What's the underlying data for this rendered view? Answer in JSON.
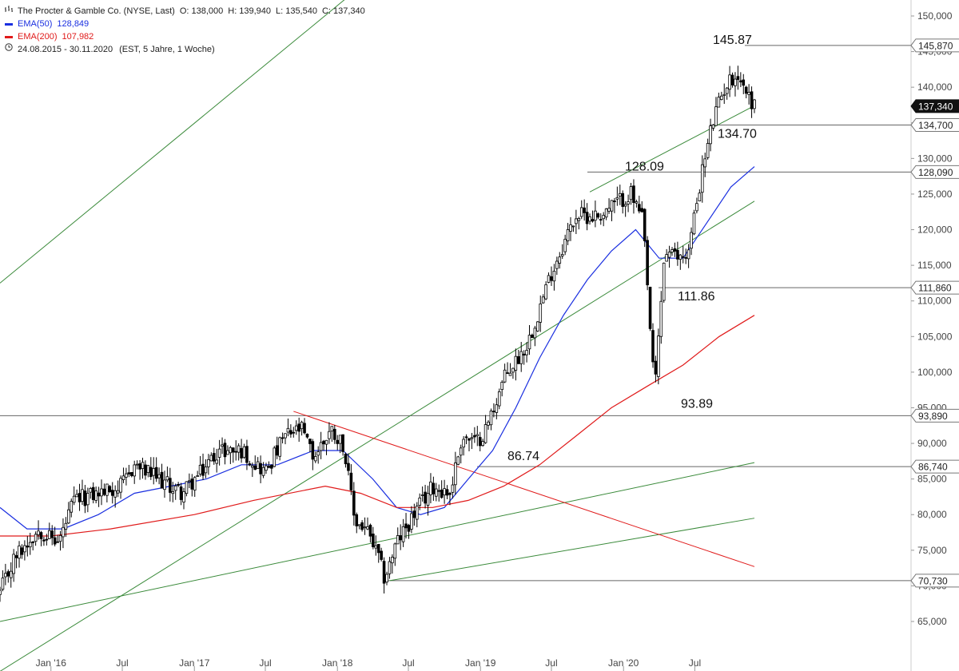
{
  "legend": {
    "title": "The Procter & Gamble Co. (NYSE, Last)",
    "ohlc": {
      "o_label": "O:",
      "o": "138,000",
      "h_label": "H:",
      "h": "139,940",
      "l_label": "L:",
      "l": "135,540",
      "c_label": "C:",
      "c": "137,340"
    },
    "ema50": {
      "label": "EMA(50)",
      "value": "128,849",
      "color": "#1a2fe0"
    },
    "ema200": {
      "label": "EMA(200)",
      "value": "107,982",
      "color": "#e01a1a"
    },
    "range": "24.08.2015 - 30.11.2020",
    "range_info": "(EST, 5 Jahre, 1 Woche)",
    "icons": {
      "ohlc": "bar-chart-icon",
      "range": "clock-icon"
    }
  },
  "chart_data": {
    "type": "candlestick",
    "interval": "1 week",
    "yaxis": {
      "range": [
        62,
        152
      ],
      "ticks": [
        65000,
        70000,
        75000,
        80000,
        85000,
        90000,
        95000,
        100000,
        105000,
        110000,
        115000,
        120000,
        125000,
        130000,
        135000,
        140000,
        145000,
        150000
      ],
      "tick_labels": [
        "65,000",
        "70,000",
        "75,000",
        "80,000",
        "85,000",
        "90,000",
        "95,000",
        "100,000",
        "105,000",
        "110,000",
        "115,000",
        "120,000",
        "125,000",
        "130,000",
        "135,000",
        "140,000",
        "145,000",
        "150,000"
      ]
    },
    "xaxis": {
      "labels": [
        "Jan '16",
        "Jul",
        "Jan '17",
        "Jul",
        "Jan '18",
        "Jul",
        "Jan '19",
        "Jul",
        "Jan '20",
        "Jul"
      ],
      "dates": [
        "2016-01-01",
        "2016-07-01",
        "2017-01-01",
        "2017-07-01",
        "2018-01-01",
        "2018-07-01",
        "2019-01-01",
        "2019-07-01",
        "2020-01-01",
        "2020-07-01"
      ],
      "range": [
        "2015-08-24",
        "2020-11-30"
      ]
    },
    "price_series": {
      "name": "The Procter & Gamble Co.",
      "color": "#000000",
      "approx_path": [
        [
          "2015-08-24",
          69
        ],
        [
          "2015-10-01",
          74
        ],
        [
          "2015-12-01",
          78
        ],
        [
          "2016-01-20",
          76
        ],
        [
          "2016-03-01",
          82
        ],
        [
          "2016-05-01",
          83
        ],
        [
          "2016-07-01",
          84
        ],
        [
          "2016-08-01",
          87
        ],
        [
          "2016-10-01",
          85
        ],
        [
          "2016-12-01",
          83
        ],
        [
          "2017-01-20",
          86
        ],
        [
          "2017-03-01",
          89
        ],
        [
          "2017-05-01",
          89
        ],
        [
          "2017-07-01",
          86
        ],
        [
          "2017-08-20",
          91
        ],
        [
          "2017-10-01",
          92
        ],
        [
          "2017-11-01",
          88
        ],
        [
          "2017-12-15",
          92
        ],
        [
          "2018-01-15",
          90
        ],
        [
          "2018-02-15",
          79
        ],
        [
          "2018-03-15",
          78
        ],
        [
          "2018-04-15",
          74
        ],
        [
          "2018-05-01",
          71
        ],
        [
          "2018-06-01",
          76
        ],
        [
          "2018-07-15",
          80
        ],
        [
          "2018-09-01",
          84
        ],
        [
          "2018-10-15",
          83
        ],
        [
          "2018-11-15",
          91
        ],
        [
          "2018-12-20",
          90
        ],
        [
          "2019-01-15",
          92
        ],
        [
          "2019-03-01",
          99
        ],
        [
          "2019-05-01",
          104
        ],
        [
          "2019-07-01",
          114
        ],
        [
          "2019-09-01",
          122
        ],
        [
          "2019-11-01",
          122
        ],
        [
          "2019-12-20",
          124
        ],
        [
          "2020-01-20",
          125
        ],
        [
          "2020-02-20",
          121
        ],
        [
          "2020-03-20",
          97
        ],
        [
          "2020-04-15",
          117
        ],
        [
          "2020-05-15",
          116
        ],
        [
          "2020-06-15",
          117
        ],
        [
          "2020-07-15",
          127
        ],
        [
          "2020-08-15",
          135
        ],
        [
          "2020-09-15",
          140
        ],
        [
          "2020-10-15",
          142
        ],
        [
          "2020-11-30",
          137.34
        ]
      ]
    },
    "series": [
      {
        "name": "EMA(50)",
        "color": "#1a2fe0",
        "last": 128.849,
        "values": [
          [
            "2015-08-24",
            81
          ],
          [
            "2015-11-01",
            78
          ],
          [
            "2016-02-01",
            78
          ],
          [
            "2016-05-01",
            80
          ],
          [
            "2016-08-01",
            83
          ],
          [
            "2016-11-01",
            84
          ],
          [
            "2017-02-01",
            85
          ],
          [
            "2017-05-01",
            87
          ],
          [
            "2017-08-01",
            87
          ],
          [
            "2017-11-01",
            89
          ],
          [
            "2018-01-15",
            89
          ],
          [
            "2018-04-01",
            85
          ],
          [
            "2018-06-01",
            81
          ],
          [
            "2018-08-01",
            80
          ],
          [
            "2018-10-01",
            81
          ],
          [
            "2018-12-01",
            85
          ],
          [
            "2019-02-01",
            89
          ],
          [
            "2019-04-01",
            95
          ],
          [
            "2019-06-01",
            102
          ],
          [
            "2019-08-01",
            108
          ],
          [
            "2019-10-01",
            113
          ],
          [
            "2019-12-01",
            117
          ],
          [
            "2020-02-01",
            120
          ],
          [
            "2020-04-01",
            116
          ],
          [
            "2020-06-01",
            116
          ],
          [
            "2020-08-01",
            121
          ],
          [
            "2020-10-01",
            126
          ],
          [
            "2020-11-30",
            128.849
          ]
        ]
      },
      {
        "name": "EMA(200)",
        "color": "#e01a1a",
        "last": 107.982,
        "values": [
          [
            "2015-08-24",
            77
          ],
          [
            "2016-01-01",
            77
          ],
          [
            "2016-06-01",
            78
          ],
          [
            "2017-01-01",
            80
          ],
          [
            "2017-06-01",
            82
          ],
          [
            "2017-12-01",
            84
          ],
          [
            "2018-03-01",
            83
          ],
          [
            "2018-06-01",
            81
          ],
          [
            "2018-09-01",
            81
          ],
          [
            "2018-12-01",
            82
          ],
          [
            "2019-03-01",
            84
          ],
          [
            "2019-06-01",
            87
          ],
          [
            "2019-09-01",
            91
          ],
          [
            "2019-12-01",
            95
          ],
          [
            "2020-03-01",
            98
          ],
          [
            "2020-06-01",
            101
          ],
          [
            "2020-09-01",
            105
          ],
          [
            "2020-11-30",
            107.982
          ]
        ]
      }
    ],
    "horizontal_levels": [
      {
        "value": 145.87,
        "label": "145.87",
        "axis_label": "145,870"
      },
      {
        "value": 134.7,
        "label": "134.70",
        "axis_label": "134,700"
      },
      {
        "value": 128.09,
        "label": "128.09",
        "axis_label": "128,090"
      },
      {
        "value": 111.86,
        "label": "111.86",
        "axis_label": "111,860"
      },
      {
        "value": 93.89,
        "label": "93.89",
        "axis_label": "93,890"
      },
      {
        "value": 86.74,
        "label": "86.74",
        "axis_label": "86,740"
      },
      {
        "value": 70.73,
        "label": "",
        "axis_label": "70,730"
      }
    ],
    "last_price": {
      "value": 137.34,
      "label": "137,340"
    },
    "trend_lines": [
      {
        "color": "#3a8a3a",
        "from": [
          "2015-08-24",
          112.5
        ],
        "to": [
          "2020-02-03",
          186
        ]
      },
      {
        "color": "#3a8a3a",
        "from": [
          "2019-10-07",
          125.3
        ],
        "to": [
          "2020-11-30",
          137.4
        ]
      },
      {
        "color": "#3a8a3a",
        "from": [
          "2015-08-24",
          58
        ],
        "to": [
          "2020-11-30",
          124
        ]
      },
      {
        "color": "#3a8a3a",
        "from": [
          "2015-08-24",
          65
        ],
        "to": [
          "2020-11-30",
          87.3
        ]
      },
      {
        "color": "#3a8a3a",
        "from": [
          "2018-05-14",
          70.73
        ],
        "to": [
          "2020-11-30",
          79.5
        ]
      },
      {
        "color": "#e01a1a",
        "from": [
          "2017-09-11",
          94.5
        ],
        "to": [
          "2020-11-30",
          72.7
        ]
      }
    ]
  }
}
